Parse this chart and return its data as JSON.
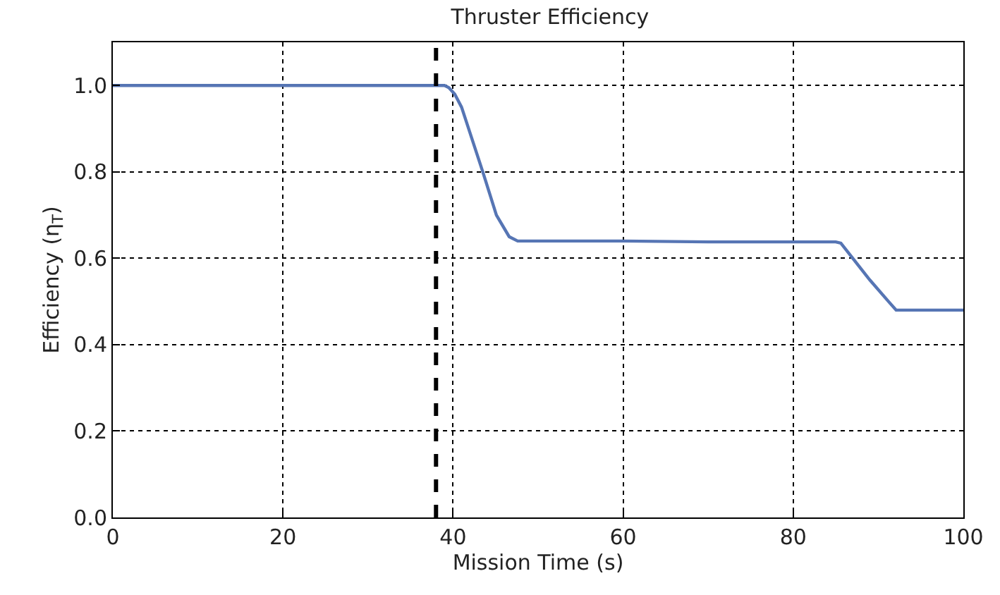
{
  "chart_data": {
    "type": "line",
    "title": "Thruster Efficiency",
    "xlabel": "Mission Time (s)",
    "ylabel": "Efficiency (η$_{T}$)",
    "x": [
      0,
      38,
      39,
      39.5,
      40.2,
      41,
      42,
      43.5,
      45.1,
      46.6,
      47.6,
      60,
      70,
      85,
      85.6,
      87,
      89,
      91.2,
      92.1,
      100
    ],
    "series": [
      {
        "color": "#5675b4",
        "values": [
          1.0,
          1.0,
          1.0,
          0.995,
          0.98,
          0.95,
          0.89,
          0.8,
          0.7,
          0.65,
          0.64,
          0.64,
          0.638,
          0.638,
          0.635,
          0.6,
          0.55,
          0.5,
          0.48,
          0.48
        ]
      }
    ],
    "xlim": [
      0,
      100
    ],
    "xticks": [
      0,
      20,
      40,
      60,
      80,
      100
    ],
    "ylim": [
      0,
      1.1
    ],
    "yticks": [
      {
        "value": 0,
        "label": "0.0"
      },
      0.2,
      0.4,
      0.6,
      0.8,
      {
        "value": 1,
        "label": "1.0"
      }
    ],
    "ref_lines": [
      {
        "axis": "x",
        "value": 38,
        "color": "#000000",
        "line_style": "dashed"
      }
    ],
    "grid": true
  }
}
